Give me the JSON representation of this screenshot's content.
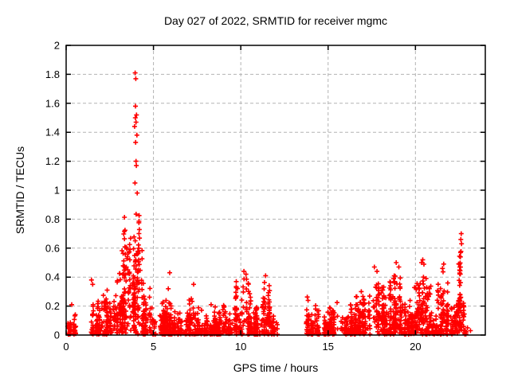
{
  "chart_data": {
    "type": "scatter",
    "title": "Day 027 of 2022, SRMTID for receiver mgmc",
    "xlabel": "GPS time / hours",
    "ylabel": "SRMTID / TECUs",
    "xlim": [
      0,
      24
    ],
    "ylim": [
      0,
      2
    ],
    "xticks": [
      0,
      5,
      10,
      15,
      20
    ],
    "xtick_labels": [
      "0",
      "5",
      "10",
      "15",
      "20"
    ],
    "yticks": [
      0,
      0.2,
      0.4,
      0.6,
      0.8,
      1,
      1.2,
      1.4,
      1.6,
      1.8,
      2
    ],
    "ytick_labels": [
      "0",
      "0.2",
      "0.4",
      "0.6",
      "0.8",
      "1",
      "1.2",
      "1.4",
      "1.6",
      "1.8",
      "2"
    ],
    "grid": true,
    "legend": "none",
    "marker": "plus",
    "marker_color": "#ff0000",
    "grid_color": "#b3b3b3",
    "axis_color": "#000000",
    "seed": 20220127,
    "segments": [
      {
        "x0": 0.05,
        "x1": 0.55,
        "n": 45,
        "y_max": 0.18,
        "k": 1.8
      },
      {
        "x0": 1.25,
        "x1": 2.05,
        "n": 70,
        "y_max": 0.3,
        "k": 1.5
      },
      {
        "x0": 2.05,
        "x1": 2.9,
        "n": 95,
        "y_max": 0.33,
        "k": 1.4
      },
      {
        "x0": 2.9,
        "x1": 3.3,
        "n": 80,
        "y_max": 0.62,
        "k": 1.1
      },
      {
        "x0": 3.3,
        "x1": 4.35,
        "n": 175,
        "y_max": 0.92,
        "k": 0.9
      },
      {
        "x0": 4.35,
        "x1": 4.85,
        "n": 70,
        "y_max": 0.45,
        "k": 1.4
      },
      {
        "x0": 4.85,
        "x1": 7.0,
        "n": 210,
        "y_max": 0.26,
        "k": 1.6
      },
      {
        "x0": 7.0,
        "x1": 7.6,
        "n": 60,
        "y_max": 0.33,
        "k": 1.5
      },
      {
        "x0": 7.6,
        "x1": 9.7,
        "n": 200,
        "y_max": 0.22,
        "k": 1.6
      },
      {
        "x0": 9.7,
        "x1": 10.6,
        "n": 95,
        "y_max": 0.44,
        "k": 1.2
      },
      {
        "x0": 10.6,
        "x1": 11.2,
        "n": 60,
        "y_max": 0.26,
        "k": 1.5
      },
      {
        "x0": 11.2,
        "x1": 11.75,
        "n": 70,
        "y_max": 0.41,
        "k": 1.2
      },
      {
        "x0": 11.75,
        "x1": 12.2,
        "n": 30,
        "y_max": 0.16,
        "k": 1.6
      },
      {
        "x0": 13.65,
        "x1": 14.15,
        "n": 45,
        "y_max": 0.29,
        "k": 1.5
      },
      {
        "x0": 14.15,
        "x1": 15.6,
        "n": 130,
        "y_max": 0.24,
        "k": 1.6
      },
      {
        "x0": 15.6,
        "x1": 16.6,
        "n": 100,
        "y_max": 0.3,
        "k": 1.5
      },
      {
        "x0": 16.6,
        "x1": 17.4,
        "n": 90,
        "y_max": 0.34,
        "k": 1.4
      },
      {
        "x0": 17.4,
        "x1": 18.4,
        "n": 115,
        "y_max": 0.44,
        "k": 1.2
      },
      {
        "x0": 18.4,
        "x1": 19.4,
        "n": 125,
        "y_max": 0.48,
        "k": 1.2
      },
      {
        "x0": 19.4,
        "x1": 20.1,
        "n": 80,
        "y_max": 0.38,
        "k": 1.3
      },
      {
        "x0": 20.1,
        "x1": 20.65,
        "n": 75,
        "y_max": 0.52,
        "k": 1.2
      },
      {
        "x0": 20.65,
        "x1": 21.3,
        "n": 70,
        "y_max": 0.36,
        "k": 1.3
      },
      {
        "x0": 21.3,
        "x1": 21.95,
        "n": 85,
        "y_max": 0.48,
        "k": 1.2
      },
      {
        "x0": 21.95,
        "x1": 22.45,
        "n": 55,
        "y_max": 0.32,
        "k": 1.4
      },
      {
        "x0": 22.45,
        "x1": 22.8,
        "n": 60,
        "y_max": 0.68,
        "k": 0.9
      },
      {
        "x0": 22.8,
        "x1": 23.2,
        "n": 8,
        "y_max": 0.06,
        "k": 1.5
      }
    ],
    "notable_points": [
      [
        0.32,
        0.21
      ],
      [
        1.45,
        0.38
      ],
      [
        1.52,
        0.35
      ],
      [
        2.35,
        0.31
      ],
      [
        3.95,
        1.81
      ],
      [
        3.99,
        1.77
      ],
      [
        3.97,
        1.58
      ],
      [
        4.03,
        1.52
      ],
      [
        3.96,
        1.5
      ],
      [
        4.0,
        1.47
      ],
      [
        3.92,
        1.44
      ],
      [
        4.05,
        1.38
      ],
      [
        3.98,
        1.33
      ],
      [
        4.0,
        1.2
      ],
      [
        4.02,
        1.17
      ],
      [
        3.94,
        1.05
      ],
      [
        4.07,
        0.98
      ],
      [
        5.93,
        0.43
      ],
      [
        5.85,
        0.32
      ],
      [
        7.3,
        0.35
      ],
      [
        8.3,
        0.21
      ],
      [
        10.18,
        0.44
      ],
      [
        10.3,
        0.42
      ],
      [
        11.42,
        0.41
      ],
      [
        16.9,
        0.3
      ],
      [
        17.65,
        0.47
      ],
      [
        17.8,
        0.44
      ],
      [
        18.9,
        0.5
      ],
      [
        19.05,
        0.47
      ],
      [
        20.42,
        0.52
      ],
      [
        20.35,
        0.5
      ],
      [
        21.62,
        0.49
      ],
      [
        21.55,
        0.46
      ],
      [
        22.62,
        0.7
      ],
      [
        22.6,
        0.66
      ],
      [
        22.64,
        0.63
      ],
      [
        22.58,
        0.57
      ],
      [
        22.98,
        0.05
      ],
      [
        23.15,
        0.03
      ]
    ]
  }
}
